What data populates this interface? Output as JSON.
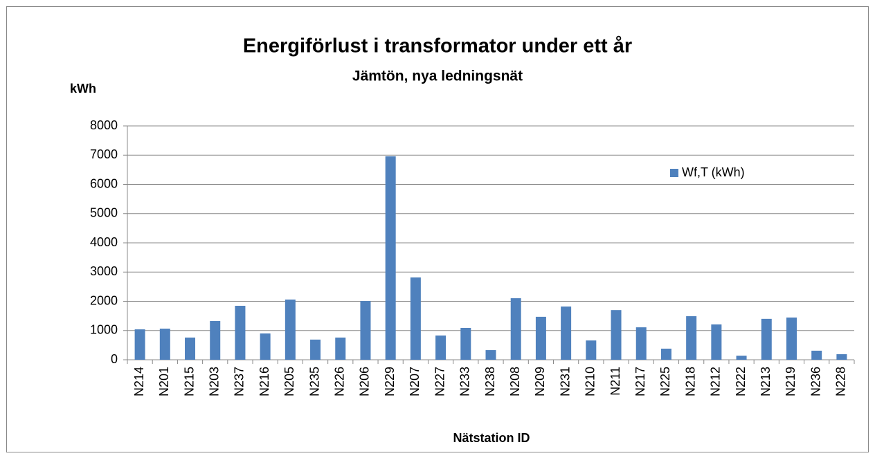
{
  "chart_data": {
    "type": "bar",
    "title": "Energiförlust i transformator under ett år",
    "subtitle": "Jämtön, nya ledningsnät",
    "y_label": "kWh",
    "x_label": "Nätstation ID",
    "categories": [
      "N214",
      "N201",
      "N215",
      "N203",
      "N237",
      "N216",
      "N205",
      "N235",
      "N226",
      "N206",
      "N229",
      "N207",
      "N227",
      "N233",
      "N238",
      "N208",
      "N209",
      "N231",
      "N210",
      "N211",
      "N217",
      "N225",
      "N218",
      "N212",
      "N222",
      "N213",
      "N219",
      "N236",
      "N228"
    ],
    "series": [
      {
        "name": "Wf,T (kWh)",
        "color": "#4f81bd",
        "values": [
          1040,
          1065,
          760,
          1325,
          1846,
          900,
          2060,
          690,
          760,
          2010,
          6960,
          2815,
          830,
          1090,
          330,
          2105,
          1470,
          1820,
          660,
          1700,
          1110,
          380,
          1490,
          1210,
          140,
          1400,
          1445,
          310,
          190
        ]
      }
    ],
    "ylim": [
      0,
      8000
    ],
    "yticks": [
      0,
      1000,
      2000,
      3000,
      4000,
      5000,
      6000,
      7000,
      8000
    ],
    "grid": true,
    "legend": "upper right"
  }
}
